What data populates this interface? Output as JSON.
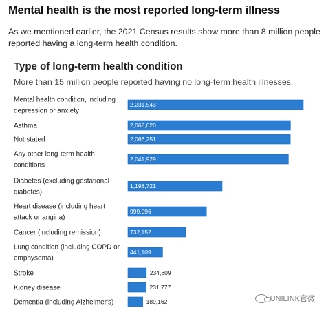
{
  "article": {
    "headline": "Mental health is the most reported long-term illness",
    "intro": "As we mentioned earlier, the 2021 Census results show more than 8 million people reported having a long-term health condition."
  },
  "watermark": {
    "text": "UNILINK官微",
    "icon": "wechat-icon"
  },
  "colors": {
    "bar": "#2a7dd1",
    "bar_border": "#1f6ab8",
    "label_dark": "#222222",
    "label_light": "#ffffff"
  },
  "chart_data": {
    "type": "bar",
    "orientation": "horizontal",
    "title": "Type of long-term health condition",
    "subtitle": "More than 15 million people reported having no long-term health illnesses.",
    "categories": [
      [
        "Mental health condition, including",
        "depression or anxiety"
      ],
      [
        "Asthma"
      ],
      [
        "Not stated"
      ],
      [
        "Any other long-term health",
        "conditions"
      ],
      [
        "Diabetes (excluding gestational",
        "diabetes)"
      ],
      [
        "Heart disease (including heart",
        "attack or angina)"
      ],
      [
        "Cancer (including remission)"
      ],
      [
        "Lung condition (including COPD or",
        "emphysema)"
      ],
      [
        "Stroke"
      ],
      [
        "Kidney disease"
      ],
      [
        "Dementia (including Alzheimer's)"
      ]
    ],
    "values": [
      2231543,
      2068020,
      2066251,
      2041929,
      1198721,
      999096,
      732152,
      441109,
      234609,
      231777,
      189162
    ],
    "value_labels": [
      "2,231,543",
      "2,068,020",
      "2,066,251",
      "2,041,929",
      "1,198,721",
      "999,096",
      "732,152",
      "441,109",
      "234,609",
      "231,777",
      "189,162"
    ],
    "grid": false,
    "legend": "none"
  }
}
